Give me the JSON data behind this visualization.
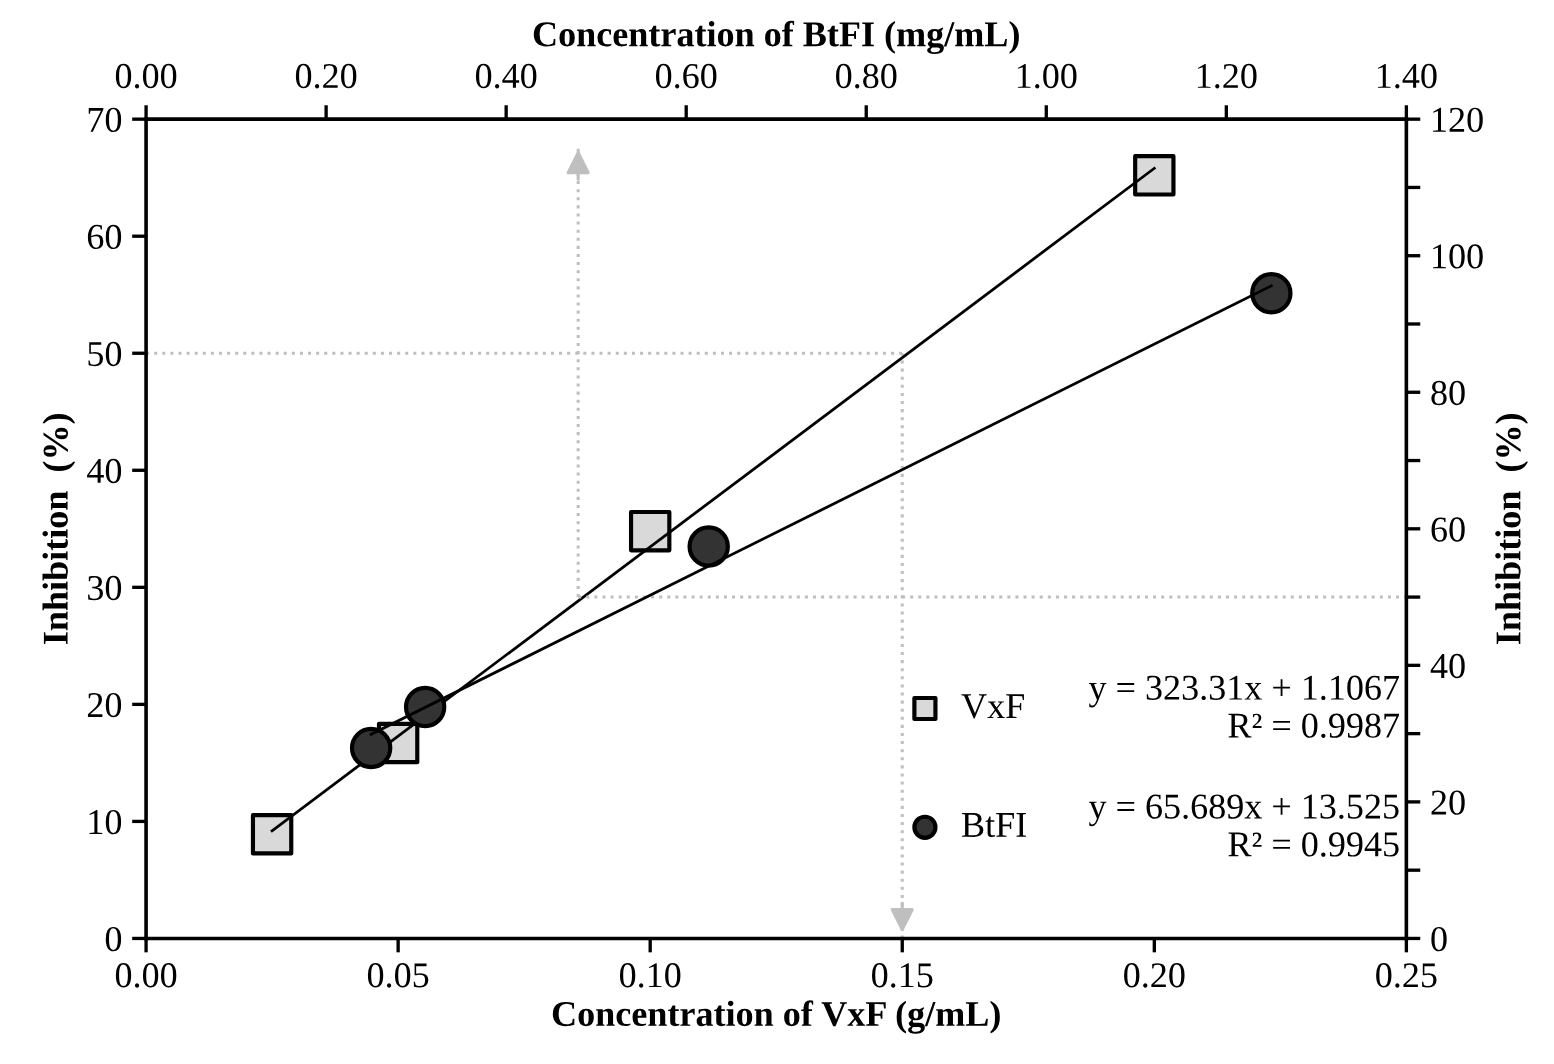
{
  "chart_data": [
    {
      "type": "scatter",
      "xlabel": "Concentration of VxF (g/mL)",
      "ylabel": "Inhibition  (%)",
      "series": [
        {
          "name": "VxF",
          "marker": "square",
          "color": "#d9d9d9",
          "x": [
            0.025,
            0.05,
            0.1,
            0.2
          ],
          "values": [
            8.9,
            16.7,
            34.8,
            65.2
          ]
        },
        {
          "type": "line",
          "color": "#000000",
          "x": [
            0.025,
            0.2
          ],
          "values": [
            9.2,
            65.8
          ]
        }
      ],
      "annotations": [
        "y = 323.31x + 1.1067\nR² = 0.9987"
      ],
      "ref_lines": [
        {
          "axis": "y",
          "value": 50,
          "color": "#bfbfbf",
          "line_style": "dotted"
        },
        {
          "axis": "x",
          "value": 0.15,
          "color": "#bfbfbf",
          "line_style": "dotted"
        }
      ],
      "xlim": [
        0,
        0.25
      ],
      "xticks": [
        {
          "value": 0,
          "label": "0.00"
        },
        {
          "value": 0.05,
          "label": "0.05"
        },
        {
          "value": 0.1,
          "label": "0.10"
        },
        {
          "value": 0.15,
          "label": "0.15"
        },
        {
          "value": 0.2,
          "label": "0.20"
        },
        {
          "value": 0.25,
          "label": "0.25"
        }
      ],
      "ylim": [
        0,
        70
      ],
      "yticks": [
        0,
        10,
        20,
        30,
        40,
        50,
        60,
        70
      ],
      "legend": "bottom right"
    },
    {
      "type": "scatter",
      "xlabel": "Concentration of BtFI (mg/mL)",
      "ylabel": "Inhibition  (%)",
      "series": [
        {
          "name": "BtFI",
          "marker": "circle",
          "color": "#333333",
          "x": [
            0.25,
            0.31,
            0.625,
            1.25
          ],
          "values": [
            27.9,
            33.9,
            57.4,
            94.5
          ]
        },
        {
          "type": "line",
          "color": "#000000",
          "x": [
            0.25,
            1.25
          ],
          "values": [
            29.9,
            95.6
          ]
        }
      ],
      "annotations": [
        "y = 65.689x + 13.525\nR² = 0.9945"
      ],
      "ref_lines": [
        {
          "axis": "y",
          "value": 50,
          "color": "#bfbfbf",
          "line_style": "dotted"
        },
        {
          "axis": "x",
          "value": 0.48,
          "color": "#bfbfbf",
          "line_style": "dotted"
        }
      ],
      "xlim": [
        0,
        1.4
      ],
      "xticks": [
        {
          "value": 0,
          "label": "0.00"
        },
        {
          "value": 0.2,
          "label": "0.20"
        },
        {
          "value": 0.4,
          "label": "0.40"
        },
        {
          "value": 0.6,
          "label": "0.60"
        },
        {
          "value": 0.8,
          "label": "0.80"
        },
        {
          "value": 1.0,
          "label": "1.00"
        },
        {
          "value": 1.2,
          "label": "1.20"
        },
        {
          "value": 1.4,
          "label": "1.40"
        }
      ],
      "ylim": [
        0,
        120
      ],
      "yticks": [
        0,
        {
          "value": 10,
          "label": null
        },
        20,
        {
          "value": 30,
          "label": null
        },
        40,
        {
          "value": 50,
          "label": null
        },
        60,
        {
          "value": 70,
          "label": null
        },
        80,
        {
          "value": 90,
          "label": null
        },
        100,
        {
          "value": 110,
          "label": null
        },
        120
      ],
      "legend": "bottom right"
    }
  ]
}
